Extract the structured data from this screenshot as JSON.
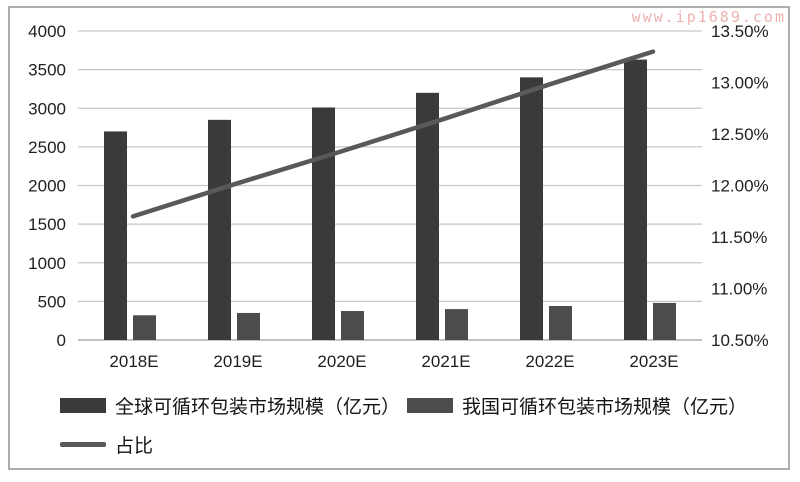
{
  "watermark": "www.ip1689.com",
  "chart_data": {
    "type": "bar",
    "categories": [
      "2018E",
      "2019E",
      "2020E",
      "2021E",
      "2022E",
      "2023E"
    ],
    "series": [
      {
        "name": "全球可循环包装市场规模（亿元）",
        "type": "bar",
        "axis": "left",
        "color": "#3a3a3c",
        "values": [
          2700,
          2850,
          3010,
          3200,
          3400,
          3630
        ]
      },
      {
        "name": "我国可循环包装市场规模（亿元）",
        "type": "bar",
        "axis": "left",
        "color": "#4c4c4e",
        "values": [
          320,
          350,
          375,
          400,
          440,
          480
        ]
      },
      {
        "name": "占比",
        "type": "line",
        "axis": "right",
        "color": "#595959",
        "values": [
          11.7,
          12.02,
          12.33,
          12.65,
          12.98,
          13.3
        ]
      }
    ],
    "title": "",
    "xlabel": "",
    "ylabel": "",
    "left_axis": {
      "min": 0,
      "max": 4000,
      "step": 500,
      "tick_labels": [
        "4000",
        "3500",
        "3000",
        "2500",
        "2000",
        "1500",
        "1000",
        "500",
        "0"
      ]
    },
    "right_axis": {
      "min": 10.5,
      "max": 13.5,
      "step": 0.5,
      "tick_labels": [
        "13.50%",
        "13.00%",
        "12.50%",
        "12.00%",
        "11.50%",
        "11.00%",
        "10.50%"
      ]
    },
    "grid": true,
    "legend_position": "bottom-left",
    "colors": {
      "grid_line": "#c6c6c6",
      "axis_line": "#9e9e9e",
      "tick_text": "#1f1f1f",
      "watermark": "#eba4a4"
    }
  }
}
